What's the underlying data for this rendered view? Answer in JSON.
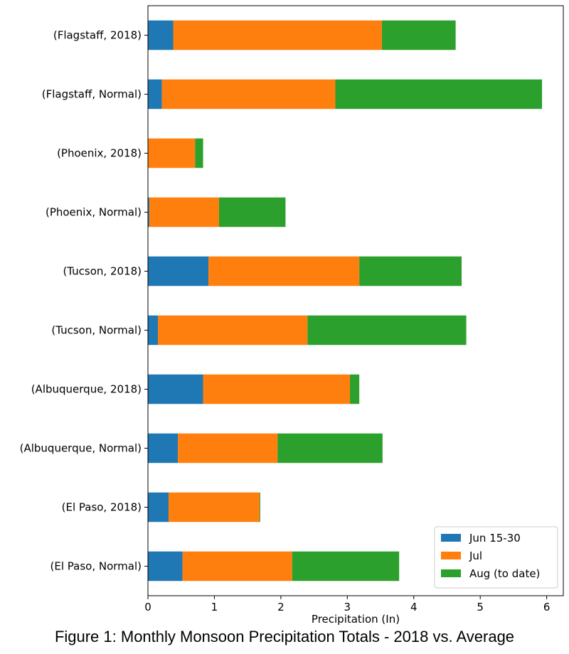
{
  "chart_data": {
    "type": "bar",
    "orientation": "horizontal",
    "stacked": true,
    "categories": [
      "(Flagstaff, 2018)",
      "(Flagstaff, Normal)",
      "(Phoenix, 2018)",
      "(Phoenix, Normal)",
      "(Tucson, 2018)",
      "(Tucson, Normal)",
      "(Albuquerque, 2018)",
      "(Albuquerque, Normal)",
      "(El Paso, 2018)",
      "(El Paso, Normal)"
    ],
    "series": [
      {
        "name": "Jun 15-30",
        "color": "#1f77b4",
        "values": [
          0.38,
          0.21,
          0.0,
          0.02,
          0.91,
          0.15,
          0.83,
          0.45,
          0.31,
          0.52
        ]
      },
      {
        "name": "Jul",
        "color": "#ff7f0e",
        "values": [
          3.14,
          2.61,
          0.71,
          1.05,
          2.27,
          2.25,
          2.21,
          1.5,
          1.37,
          1.65
        ]
      },
      {
        "name": "Aug (to date)",
        "color": "#2ca02c",
        "values": [
          1.11,
          3.11,
          0.12,
          1.0,
          1.54,
          2.39,
          0.14,
          1.58,
          0.01,
          1.61
        ]
      }
    ],
    "xlabel": "Precipitation (In)",
    "ylabel": "",
    "xlim": [
      0,
      6.25
    ],
    "xticks": [
      0,
      1,
      2,
      3,
      4,
      5,
      6
    ],
    "grid": false,
    "legend_position": "bottom-right",
    "caption": "Figure 1: Monthly Monsoon Precipitation Totals - 2018 vs. Average"
  }
}
